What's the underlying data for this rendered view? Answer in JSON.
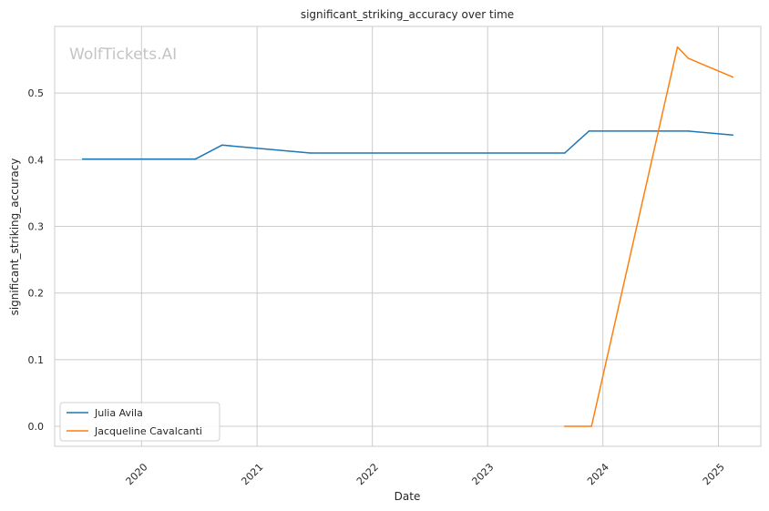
{
  "chart_data": {
    "type": "line",
    "title": "significant_striking_accuracy over time",
    "xlabel": "Date",
    "ylabel": "significant_striking_accuracy",
    "watermark": "WolfTickets.AI",
    "x_ticks": [
      "2020",
      "2021",
      "2022",
      "2023",
      "2024",
      "2025"
    ],
    "y_ticks": [
      "0.0",
      "0.1",
      "0.2",
      "0.3",
      "0.4",
      "0.5"
    ],
    "xlim": [
      "2019-04-01",
      "2025-05-15"
    ],
    "ylim": [
      -0.03,
      0.6
    ],
    "grid": true,
    "legend_position": "lower-left",
    "series": [
      {
        "name": "Julia Avila",
        "color": "#1f77b4",
        "points": [
          [
            "2019-06-29",
            0.401
          ],
          [
            "2020-06-20",
            0.401
          ],
          [
            "2020-09-12",
            0.422
          ],
          [
            "2021-06-19",
            0.41
          ],
          [
            "2023-09-02",
            0.41
          ],
          [
            "2023-11-18",
            0.443
          ],
          [
            "2024-09-28",
            0.443
          ],
          [
            "2025-02-15",
            0.437
          ]
        ]
      },
      {
        "name": "Jacqueline Cavalcanti",
        "color": "#ff7f0e",
        "points": [
          [
            "2023-09-02",
            0.0
          ],
          [
            "2023-11-26",
            0.0
          ],
          [
            "2024-08-24",
            0.569
          ],
          [
            "2024-09-28",
            0.552
          ],
          [
            "2025-02-15",
            0.524
          ]
        ]
      }
    ]
  }
}
